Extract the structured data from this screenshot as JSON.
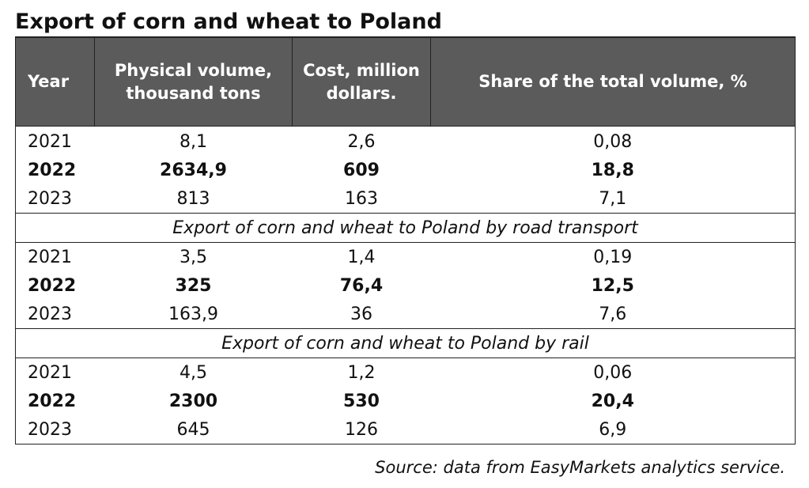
{
  "title": "Export of corn and wheat to Poland",
  "headers": {
    "year": "Year",
    "volume": "Physical volume, thousand tons",
    "cost": "Cost, million dollars.",
    "share": "Share of the total volume, %"
  },
  "total": [
    {
      "year": "2021",
      "volume": "8,1",
      "cost": "2,6",
      "share": "0,08"
    },
    {
      "year": "2022",
      "volume": "2634,9",
      "cost": "609",
      "share": "18,8"
    },
    {
      "year": "2023",
      "volume": "813",
      "cost": "163",
      "share": "7,1"
    }
  ],
  "road": {
    "heading": "Export of corn and wheat to Poland by road transport",
    "rows": [
      {
        "year": "2021",
        "volume": "3,5",
        "cost": "1,4",
        "share": "0,19"
      },
      {
        "year": "2022",
        "volume": "325",
        "cost": "76,4",
        "share": "12,5"
      },
      {
        "year": "2023",
        "volume": "163,9",
        "cost": "36",
        "share": "7,6"
      }
    ]
  },
  "rail": {
    "heading": "Export of corn and wheat to Poland by rail",
    "rows": [
      {
        "year": "2021",
        "volume": "4,5",
        "cost": "1,2",
        "share": "0,06"
      },
      {
        "year": "2022",
        "volume": "2300",
        "cost": "530",
        "share": "20,4"
      },
      {
        "year": "2023",
        "volume": "645",
        "cost": "126",
        "share": "6,9"
      }
    ]
  },
  "source": "Source: data from EasyMarkets analytics service."
}
